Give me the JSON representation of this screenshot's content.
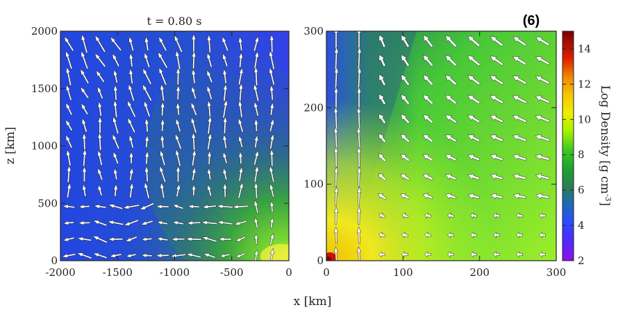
{
  "chart_data": [
    {
      "type": "heatmap",
      "title": "t = 0.80 s",
      "xlabel": "",
      "ylabel": "z [km]",
      "xlim": [
        -2000,
        0
      ],
      "ylim": [
        0,
        2000
      ],
      "x_ticks": [
        -2000,
        -1500,
        -1000,
        -500,
        0
      ],
      "y_ticks": [
        0,
        500,
        1000,
        1500,
        2000
      ],
      "y_tick_labels": [
        "0",
        "500",
        "1000",
        "1500",
        "2000"
      ],
      "overlay": "velocity arrows",
      "background_density": "mostly 3.5-4.5 with green (6-8) tongue toward lower right near origin"
    },
    {
      "type": "heatmap",
      "title": "",
      "xlabel": "",
      "ylabel": "",
      "xlim": [
        0,
        300
      ],
      "ylim": [
        0,
        300
      ],
      "x_ticks": [
        0,
        100,
        200,
        300
      ],
      "y_ticks": [
        0,
        100,
        200,
        300
      ],
      "overlay": "velocity arrows",
      "background_density": "blue (~4) near axis, green (7-9) bulk, yellow (~10-11) near base, red (~14) at origin"
    }
  ],
  "figure": {
    "panel_label": "(6)",
    "shared_xlabel": "x [km]",
    "colorbar": {
      "label": "Log Density [g cm",
      "label_exponent": "-3",
      "label_close": "]",
      "range": [
        2,
        15
      ],
      "ticks": [
        "2",
        "4",
        "6",
        "8",
        "10",
        "12",
        "14"
      ],
      "colormap": [
        "#8000ff",
        "#4a2dff",
        "#2050ff",
        "#1f5f9a",
        "#2a8040",
        "#20c020",
        "#a0f000",
        "#f0f000",
        "#f0c000",
        "#f07000",
        "#e01000",
        "#800000"
      ]
    }
  }
}
